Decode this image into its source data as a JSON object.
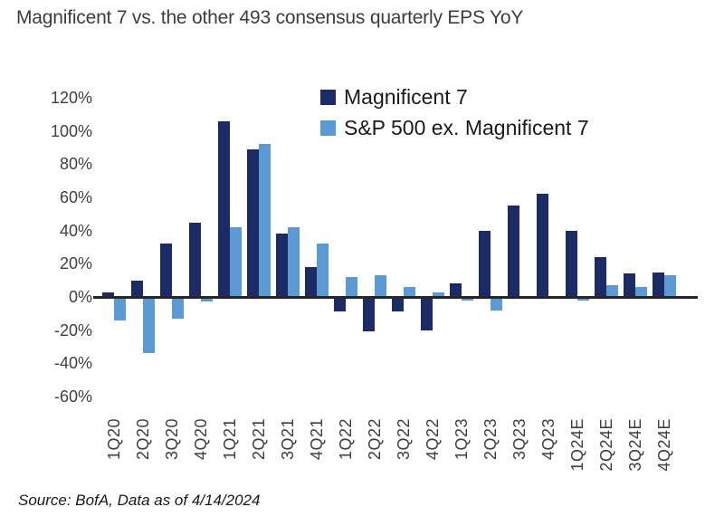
{
  "title": "Magnificent 7 vs. the other 493 consensus quarterly EPS YoY",
  "source": "Source: BofA, Data as of 4/14/2024",
  "colors": {
    "mag7": "#1c2b66",
    "ex_mag7": "#5b9bd5",
    "axis_line": "#262626",
    "title_text": "#3d3d3d",
    "tick_text": "#404040",
    "legend_text": "#1a1a1a"
  },
  "chart_data": {
    "type": "bar",
    "title": "Magnificent 7 vs. the other 493 consensus quarterly EPS YoY",
    "categories": [
      "1Q20",
      "2Q20",
      "3Q20",
      "4Q20",
      "1Q21",
      "2Q21",
      "3Q21",
      "4Q21",
      "1Q22",
      "2Q22",
      "3Q22",
      "4Q22",
      "1Q23",
      "2Q23",
      "3Q23",
      "4Q23",
      "1Q24E",
      "2Q24E",
      "3Q24E",
      "4Q24E"
    ],
    "series": [
      {
        "name": "Magnificent 7",
        "color": "#1c2b66",
        "values": [
          3,
          10,
          32,
          45,
          106,
          89,
          38,
          18,
          -9,
          -21,
          -9,
          -20,
          8,
          40,
          55,
          62,
          40,
          24,
          14,
          15
        ]
      },
      {
        "name": "S&P 500 ex. Magnificent 7",
        "color": "#5b9bd5",
        "values": [
          -14,
          -34,
          -13,
          -3,
          42,
          92,
          42,
          32,
          12,
          13,
          6,
          3,
          -2,
          -8,
          0,
          -1,
          -2,
          7,
          6,
          13
        ]
      }
    ],
    "y_ticks": [
      120,
      100,
      80,
      60,
      40,
      20,
      0,
      -20,
      -40,
      -60
    ],
    "y_tick_suffix": "%",
    "ylim": [
      -60,
      120
    ],
    "xlabel": "",
    "ylabel": "",
    "grid": false,
    "legend_position": "top-center"
  }
}
